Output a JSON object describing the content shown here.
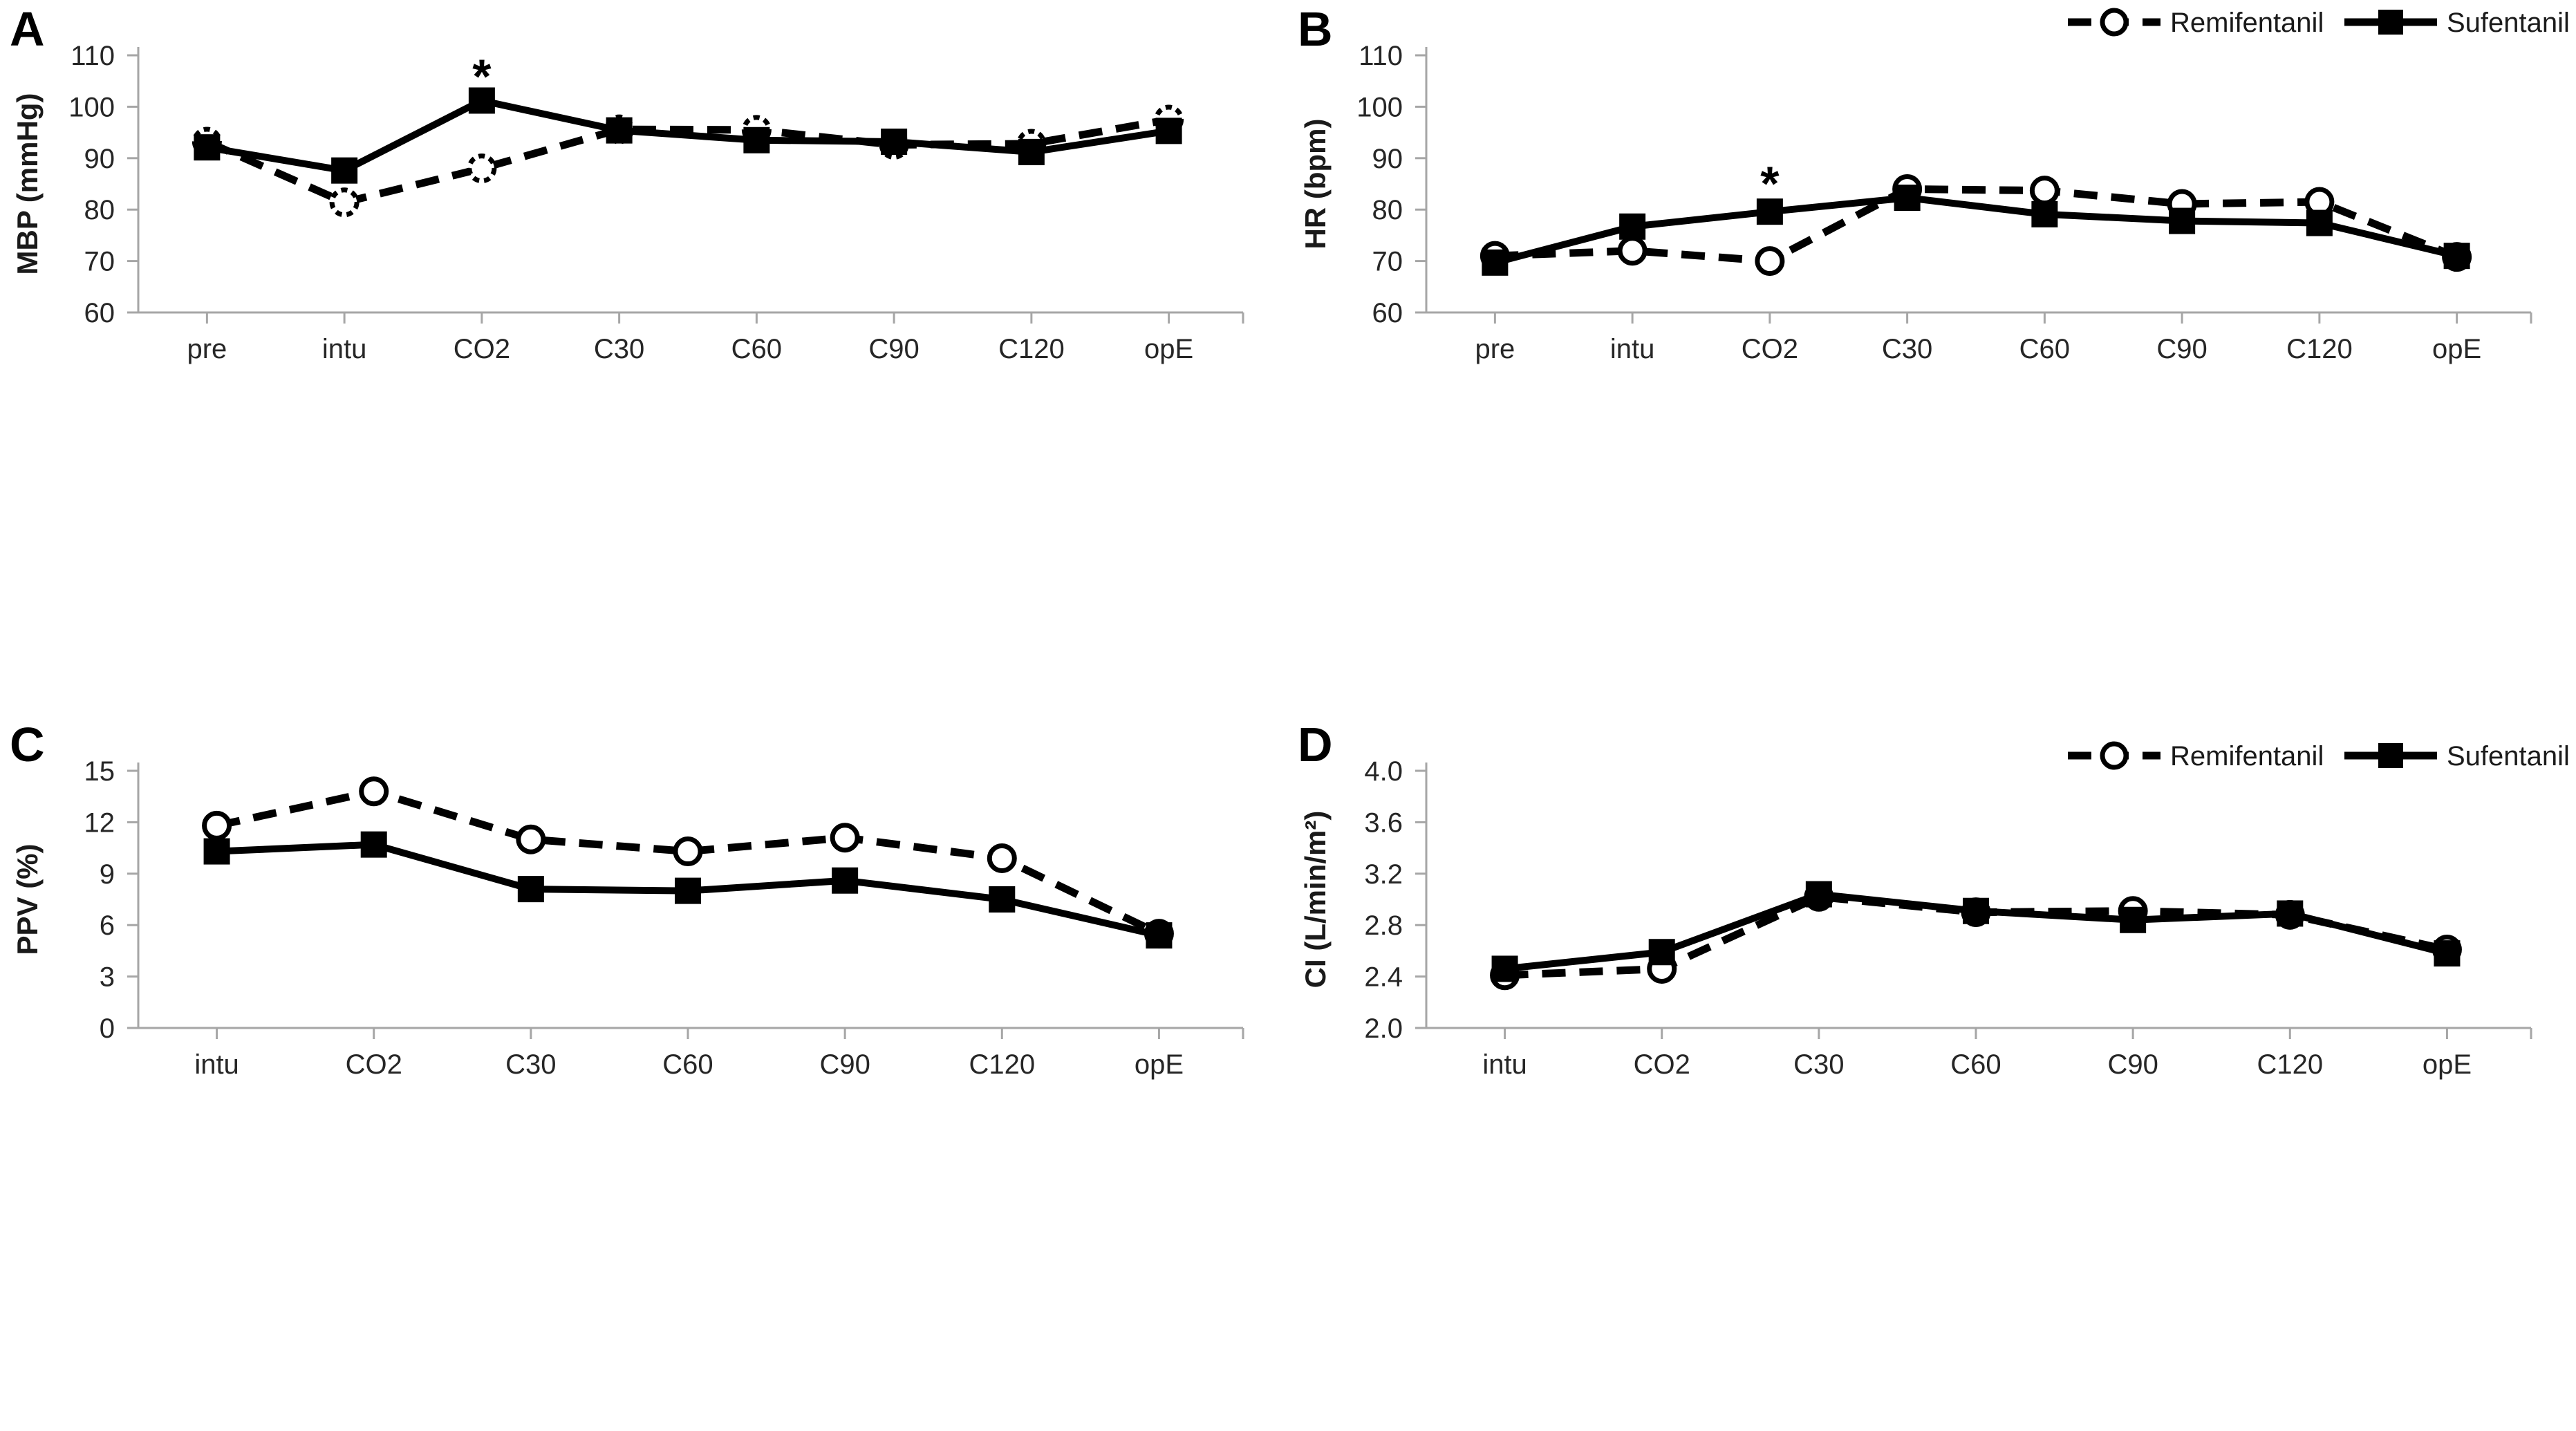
{
  "figure": {
    "background": "#ffffff",
    "axis_color": "#a6a6a6",
    "line_color": "#000000",
    "text_color": "#262626",
    "legend": [
      {
        "label": "Remifentanil",
        "marker": "open-circle",
        "line": "dashed"
      },
      {
        "label": "Sufentanil",
        "marker": "filled-square",
        "line": "solid"
      }
    ]
  },
  "chart_data": [
    {
      "panel": "A",
      "type": "line",
      "ylabel": "MBP (mmHg)",
      "xlabel": "",
      "ylim": [
        60,
        110
      ],
      "ytick_values": [
        60,
        70,
        80,
        90,
        100,
        110
      ],
      "ytick_labels": [
        "60",
        "70",
        "80",
        "90",
        "100",
        "110"
      ],
      "categories": [
        "pre",
        "intu",
        "CO2",
        "C30",
        "C60",
        "C90",
        "C120",
        "opE"
      ],
      "grid": false,
      "legend_visible": false,
      "annotations": [
        {
          "text": "*",
          "category": "CO2",
          "y": 105.6
        }
      ],
      "series": [
        {
          "name": "Remifentanil",
          "line": "dashed",
          "marker": "open-circle",
          "marker_ring_dashed": true,
          "values": [
            93.2,
            81.4,
            88.0,
            95.6,
            95.5,
            92.6,
            92.8,
            97.5
          ]
        },
        {
          "name": "Sufentanil",
          "line": "solid",
          "marker": "filled-square",
          "marker_ring_dashed": false,
          "values": [
            92.1,
            87.6,
            101.2,
            95.4,
            93.5,
            93.2,
            91.2,
            95.3
          ]
        }
      ]
    },
    {
      "panel": "B",
      "type": "line",
      "ylabel": "HR (bpm)",
      "xlabel": "",
      "ylim": [
        60,
        110
      ],
      "ytick_values": [
        60,
        70,
        80,
        90,
        100,
        110
      ],
      "ytick_labels": [
        "60",
        "70",
        "80",
        "90",
        "100",
        "110"
      ],
      "categories": [
        "pre",
        "intu",
        "CO2",
        "C30",
        "C60",
        "C90",
        "C120",
        "opE"
      ],
      "grid": false,
      "legend_visible": true,
      "annotations": [
        {
          "text": "*",
          "category": "CO2",
          "y": 84.8
        }
      ],
      "series": [
        {
          "name": "Remifentanil",
          "line": "dashed",
          "marker": "open-circle",
          "marker_ring_dashed": false,
          "values": [
            71.0,
            72.0,
            70.0,
            84.0,
            83.7,
            81.1,
            81.5,
            70.8
          ]
        },
        {
          "name": "Sufentanil",
          "line": "solid",
          "marker": "filled-square",
          "marker_ring_dashed": false,
          "values": [
            69.7,
            76.7,
            79.6,
            82.3,
            79.1,
            77.8,
            77.4,
            71.0
          ]
        }
      ]
    },
    {
      "panel": "C",
      "type": "line",
      "ylabel": "PPV (%)",
      "xlabel": "",
      "ylim": [
        0,
        15
      ],
      "ytick_values": [
        0,
        3,
        6,
        9,
        12,
        15
      ],
      "ytick_labels": [
        "0",
        "3",
        "6",
        "9",
        "12",
        "15"
      ],
      "categories": [
        "intu",
        "CO2",
        "C30",
        "C60",
        "C90",
        "C120",
        "opE"
      ],
      "grid": false,
      "legend_visible": false,
      "annotations": [],
      "series": [
        {
          "name": "Remifentanil",
          "line": "dashed",
          "marker": "open-circle",
          "marker_ring_dashed": false,
          "values": [
            11.8,
            13.8,
            11.0,
            10.3,
            11.1,
            9.9,
            5.5
          ]
        },
        {
          "name": "Sufentanil",
          "line": "solid",
          "marker": "filled-square",
          "marker_ring_dashed": false,
          "values": [
            10.3,
            10.7,
            8.1,
            8.0,
            8.6,
            7.5,
            5.4
          ]
        }
      ]
    },
    {
      "panel": "D",
      "type": "line",
      "ylabel": "CI (L/min/m²)",
      "xlabel": "",
      "ylim": [
        2.0,
        4.0
      ],
      "ytick_values": [
        2.0,
        2.4,
        2.8,
        3.2,
        3.6,
        4.0
      ],
      "ytick_labels": [
        "2.0",
        "2.4",
        "2.8",
        "3.2",
        "3.6",
        "4.0"
      ],
      "categories": [
        "intu",
        "CO2",
        "C30",
        "C60",
        "C90",
        "C120",
        "opE"
      ],
      "grid": false,
      "legend_visible": true,
      "annotations": [],
      "series": [
        {
          "name": "Remifentanil",
          "line": "dashed",
          "marker": "open-circle",
          "marker_ring_dashed": false,
          "values": [
            2.41,
            2.46,
            3.02,
            2.9,
            2.91,
            2.88,
            2.61
          ]
        },
        {
          "name": "Sufentanil",
          "line": "solid",
          "marker": "filled-square",
          "marker_ring_dashed": false,
          "values": [
            2.46,
            2.59,
            3.04,
            2.91,
            2.84,
            2.89,
            2.58
          ]
        }
      ]
    }
  ]
}
